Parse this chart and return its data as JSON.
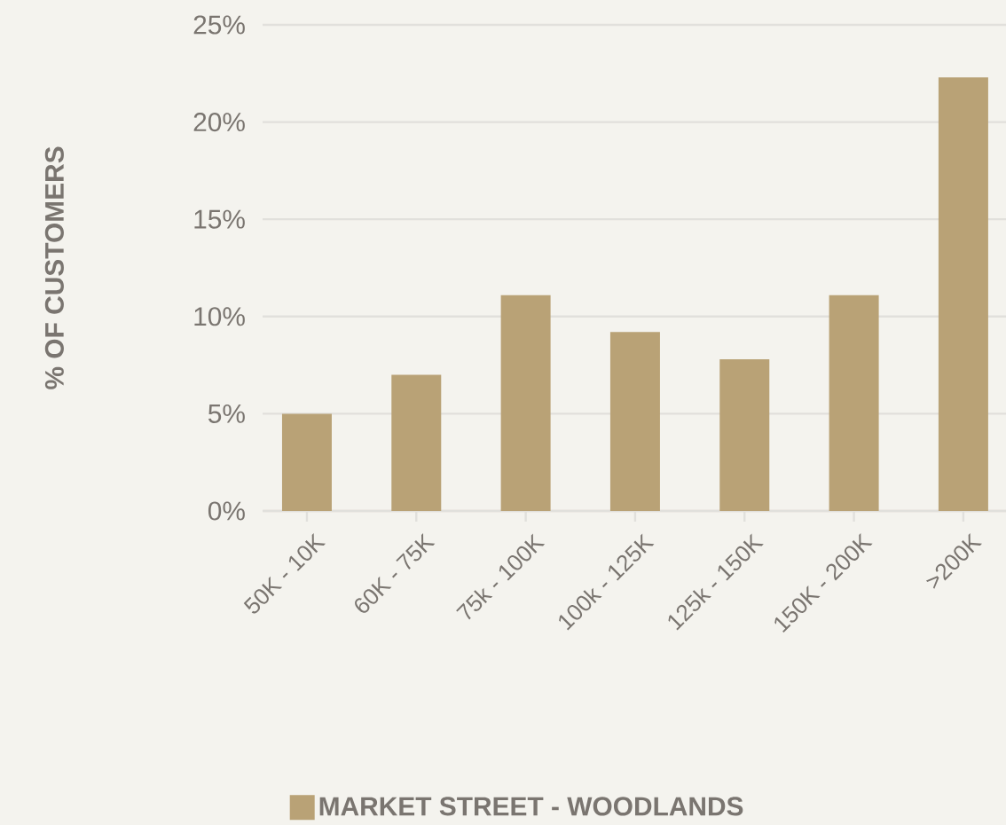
{
  "chart_data": {
    "type": "bar",
    "ylabel": "% OF CUSTOMERS",
    "categories": [
      "50K - 10K",
      "60K - 75K",
      "75k - 100K",
      "100k - 125K",
      "125k - 150K",
      "150K - 200K",
      ">200K"
    ],
    "series": [
      {
        "name": "MARKET STREET - WOODLANDS",
        "color": "#b9a276",
        "values": [
          5.0,
          7.0,
          11.1,
          9.2,
          7.8,
          11.1,
          22.3
        ]
      }
    ],
    "ylim": [
      0,
      25
    ],
    "yticks": [
      {
        "value": 0,
        "label": "0%"
      },
      {
        "value": 5,
        "label": "5%"
      },
      {
        "value": 10,
        "label": "10%"
      },
      {
        "value": 15,
        "label": "15%"
      },
      {
        "value": 20,
        "label": "20%"
      },
      {
        "value": 25,
        "label": "25%"
      }
    ],
    "grid": "y",
    "legend": "bottom"
  }
}
